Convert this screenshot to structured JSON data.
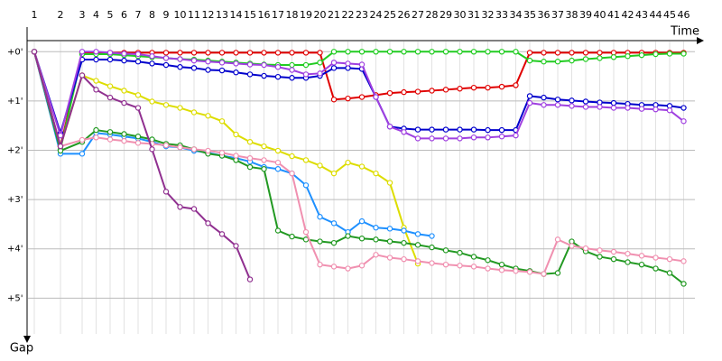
{
  "chart_data": {
    "type": "line",
    "x_label": "Time",
    "y_label": "Gap",
    "categories": [
      1,
      2,
      3,
      4,
      5,
      6,
      7,
      8,
      9,
      10,
      11,
      12,
      13,
      14,
      15,
      16,
      17,
      18,
      19,
      20,
      21,
      22,
      23,
      24,
      25,
      26,
      27,
      28,
      29,
      30,
      31,
      32,
      33,
      34,
      35,
      36,
      37,
      38,
      39,
      40,
      41,
      42,
      43,
      44,
      45,
      46
    ],
    "ylim": [
      -0.5,
      5.8
    ],
    "yticks": [
      {
        "value": 0,
        "label": "+0'"
      },
      {
        "value": 1,
        "label": "+1'"
      },
      {
        "value": 2,
        "label": "+2'"
      },
      {
        "value": 3,
        "label": "+3'"
      },
      {
        "value": 4,
        "label": "+4'"
      },
      {
        "value": 5,
        "label": "+5'"
      }
    ],
    "grid": true,
    "series": [
      {
        "color": "#e00000",
        "values": [
          0,
          1.92,
          0.02,
          0.02,
          0.02,
          0.02,
          0.02,
          0.02,
          0.02,
          0.02,
          0.02,
          0.02,
          0.02,
          0.02,
          0.02,
          0.02,
          0.02,
          0.02,
          0.02,
          0.02,
          0.97,
          0.95,
          0.92,
          0.88,
          0.84,
          0.82,
          0.81,
          0.79,
          0.77,
          0.75,
          0.73,
          0.73,
          0.71,
          0.68,
          0.02,
          0.02,
          0.02,
          0.02,
          0.02,
          0.02,
          0.02,
          0.02,
          0.02,
          0.02,
          0.02,
          0.02
        ]
      },
      {
        "color": "#22cc22",
        "values": [
          0,
          1.98,
          0.05,
          0.05,
          0.05,
          0.07,
          0.09,
          0.11,
          0.13,
          0.15,
          0.16,
          0.18,
          0.2,
          0.22,
          0.24,
          0.26,
          0.27,
          0.27,
          0.27,
          0.22,
          0,
          0,
          0,
          0,
          0,
          0,
          0,
          0,
          0,
          0,
          0,
          0,
          0,
          0,
          0.18,
          0.2,
          0.2,
          0.18,
          0.15,
          0.13,
          0.11,
          0.09,
          0.07,
          0.05,
          0.04,
          0.04
        ]
      },
      {
        "color": "#0000cc",
        "values": [
          0,
          1.65,
          0.16,
          0.16,
          0.16,
          0.18,
          0.2,
          0.24,
          0.27,
          0.31,
          0.33,
          0.37,
          0.38,
          0.42,
          0.46,
          0.49,
          0.51,
          0.53,
          0.53,
          0.49,
          0.33,
          0.33,
          0.35,
          0.92,
          1.52,
          1.56,
          1.58,
          1.58,
          1.58,
          1.58,
          1.58,
          1.59,
          1.59,
          1.59,
          0.9,
          0.93,
          0.97,
          0.99,
          1.01,
          1.03,
          1.04,
          1.06,
          1.08,
          1.08,
          1.1,
          1.14
        ]
      },
      {
        "color": "#a040e0",
        "values": [
          0,
          1.7,
          0,
          0,
          0.02,
          0.04,
          0.05,
          0.09,
          0.13,
          0.15,
          0.18,
          0.2,
          0.22,
          0.24,
          0.26,
          0.27,
          0.31,
          0.37,
          0.46,
          0.44,
          0.22,
          0.24,
          0.26,
          0.92,
          1.52,
          1.63,
          1.76,
          1.76,
          1.76,
          1.76,
          1.74,
          1.74,
          1.72,
          1.7,
          1.04,
          1.08,
          1.08,
          1.1,
          1.12,
          1.12,
          1.14,
          1.14,
          1.16,
          1.17,
          1.19,
          1.41
        ]
      },
      {
        "color": "#dddd00",
        "values": [
          0,
          1.92,
          0.48,
          0.59,
          0.7,
          0.79,
          0.88,
          1.01,
          1.08,
          1.14,
          1.23,
          1.3,
          1.41,
          1.68,
          1.83,
          1.92,
          2.01,
          2.12,
          2.2,
          2.31,
          2.47,
          2.25,
          2.33,
          2.47,
          2.66,
          3.57,
          4.3,
          null,
          null,
          null,
          null,
          null,
          null,
          null,
          null,
          null,
          null,
          null,
          null,
          null,
          null,
          null,
          null,
          null,
          null,
          null
        ]
      },
      {
        "color": "#1e90ff",
        "values": [
          0,
          2.07,
          2.07,
          1.65,
          1.68,
          1.72,
          1.76,
          1.83,
          1.92,
          1.94,
          2.01,
          2.05,
          2.11,
          2.16,
          2.23,
          2.34,
          2.38,
          2.47,
          2.71,
          3.35,
          3.48,
          3.66,
          3.44,
          3.57,
          3.59,
          3.63,
          3.7,
          3.74,
          null,
          null,
          null,
          null,
          null,
          null,
          null,
          null,
          null,
          null,
          null,
          null,
          null,
          null,
          null,
          null,
          null,
          null
        ]
      },
      {
        "color": "#229922",
        "values": [
          0,
          2.01,
          1.83,
          1.59,
          1.63,
          1.67,
          1.72,
          1.78,
          1.87,
          1.9,
          1.98,
          2.07,
          2.11,
          2.2,
          2.34,
          2.38,
          3.63,
          3.75,
          3.81,
          3.85,
          3.88,
          3.74,
          3.79,
          3.81,
          3.85,
          3.88,
          3.92,
          3.97,
          4.03,
          4.08,
          4.16,
          4.23,
          4.32,
          4.4,
          4.45,
          4.51,
          4.49,
          3.85,
          4.05,
          4.16,
          4.21,
          4.27,
          4.32,
          4.4,
          4.49,
          4.71
        ]
      },
      {
        "color": "#f090b0",
        "values": [
          0,
          1.92,
          1.79,
          1.74,
          1.78,
          1.81,
          1.85,
          1.87,
          1.9,
          1.94,
          1.98,
          2.01,
          2.05,
          2.11,
          2.16,
          2.2,
          2.25,
          2.47,
          3.66,
          4.32,
          4.36,
          4.4,
          4.34,
          4.12,
          4.18,
          4.21,
          4.25,
          4.29,
          4.32,
          4.34,
          4.36,
          4.4,
          4.43,
          4.45,
          4.47,
          4.51,
          3.81,
          3.94,
          3.99,
          4.03,
          4.06,
          4.1,
          4.14,
          4.18,
          4.21,
          4.25
        ]
      },
      {
        "color": "#903090",
        "values": [
          0,
          1.92,
          0.48,
          0.77,
          0.93,
          1.04,
          1.14,
          1.98,
          2.84,
          3.15,
          3.19,
          3.48,
          3.7,
          3.94,
          4.62,
          null,
          null,
          null,
          null,
          null,
          null,
          null,
          null,
          null,
          null,
          null,
          null,
          null,
          null,
          null,
          null,
          null,
          null,
          null,
          null,
          null,
          null,
          null,
          null,
          null,
          null,
          null,
          null,
          null,
          null,
          null
        ]
      }
    ]
  }
}
